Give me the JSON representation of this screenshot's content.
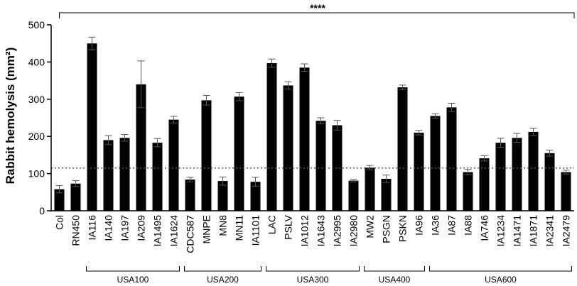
{
  "chart_data": {
    "type": "bar",
    "ylabel": "Rabbit hemolysis (mm²)",
    "xlabel": "",
    "ylim": [
      0,
      500
    ],
    "yticks": [
      0,
      100,
      200,
      300,
      400,
      500
    ],
    "reference_line": 115,
    "significance": "****",
    "categories": [
      "Col",
      "RN450",
      "IA116",
      "IA140",
      "IA197",
      "IA209",
      "IA1495",
      "IA1624",
      "CDC587",
      "MNPE",
      "MN8",
      "MN11",
      "IA1101",
      "LAC",
      "PSLV",
      "IA1012",
      "IA1643",
      "IA2995",
      "IA2980",
      "MW2",
      "PSGN",
      "PSKN",
      "IA96",
      "IA36",
      "IA87",
      "IA88",
      "IA746",
      "IA1234",
      "IA1471",
      "IA1871",
      "IA2341",
      "IA2479"
    ],
    "values": [
      58,
      73,
      450,
      190,
      196,
      340,
      183,
      245,
      84,
      297,
      80,
      307,
      78,
      397,
      337,
      385,
      242,
      230,
      81,
      116,
      86,
      332,
      210,
      255,
      278,
      104,
      141,
      183,
      196,
      212,
      155,
      104
    ],
    "errors": [
      10,
      8,
      17,
      12,
      9,
      63,
      11,
      9,
      6,
      13,
      11,
      11,
      12,
      11,
      10,
      10,
      8,
      13,
      3,
      6,
      10,
      6,
      6,
      6,
      11,
      7,
      7,
      12,
      12,
      10,
      8,
      5
    ],
    "groups": [
      {
        "label": "USA100",
        "start": 2,
        "end": 7
      },
      {
        "label": "USA200",
        "start": 8,
        "end": 12
      },
      {
        "label": "USA300",
        "start": 13,
        "end": 18
      },
      {
        "label": "USA400",
        "start": 19,
        "end": 22
      },
      {
        "label": "USA600",
        "start": 23,
        "end": 31
      }
    ]
  }
}
